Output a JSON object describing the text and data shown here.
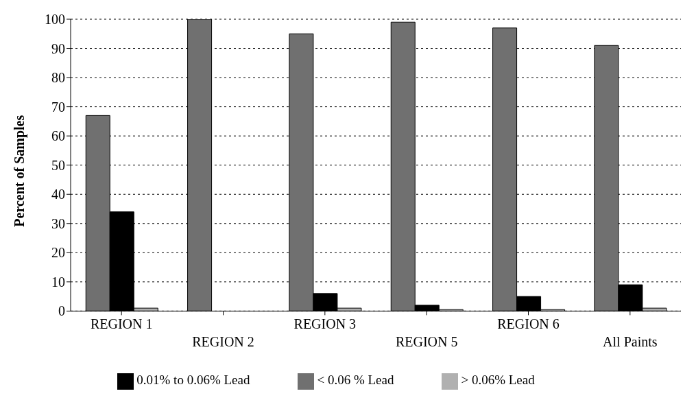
{
  "chart_data": {
    "type": "bar",
    "ylabel": "Percent of Samples",
    "categories": [
      "REGION 1",
      "REGION 2",
      "REGION 3",
      "REGION 5",
      "REGION 6",
      "All Paints"
    ],
    "series": [
      {
        "name": "< 0.06 % Lead",
        "color": "#707070",
        "values": [
          67,
          100,
          95,
          99,
          97,
          91
        ]
      },
      {
        "name": "0.01% to 0.06% Lead",
        "color": "#000000",
        "values": [
          34,
          0,
          6,
          2,
          5,
          9
        ]
      },
      {
        "name": "> 0.06% Lead",
        "color": "#b0b0b0",
        "values": [
          1,
          0,
          1,
          0.5,
          0.5,
          1
        ]
      }
    ],
    "ylim": [
      0,
      100
    ],
    "yticks": [
      0,
      10,
      20,
      30,
      40,
      50,
      60,
      70,
      80,
      90,
      100
    ],
    "grid": "y",
    "legend": "bottom"
  }
}
